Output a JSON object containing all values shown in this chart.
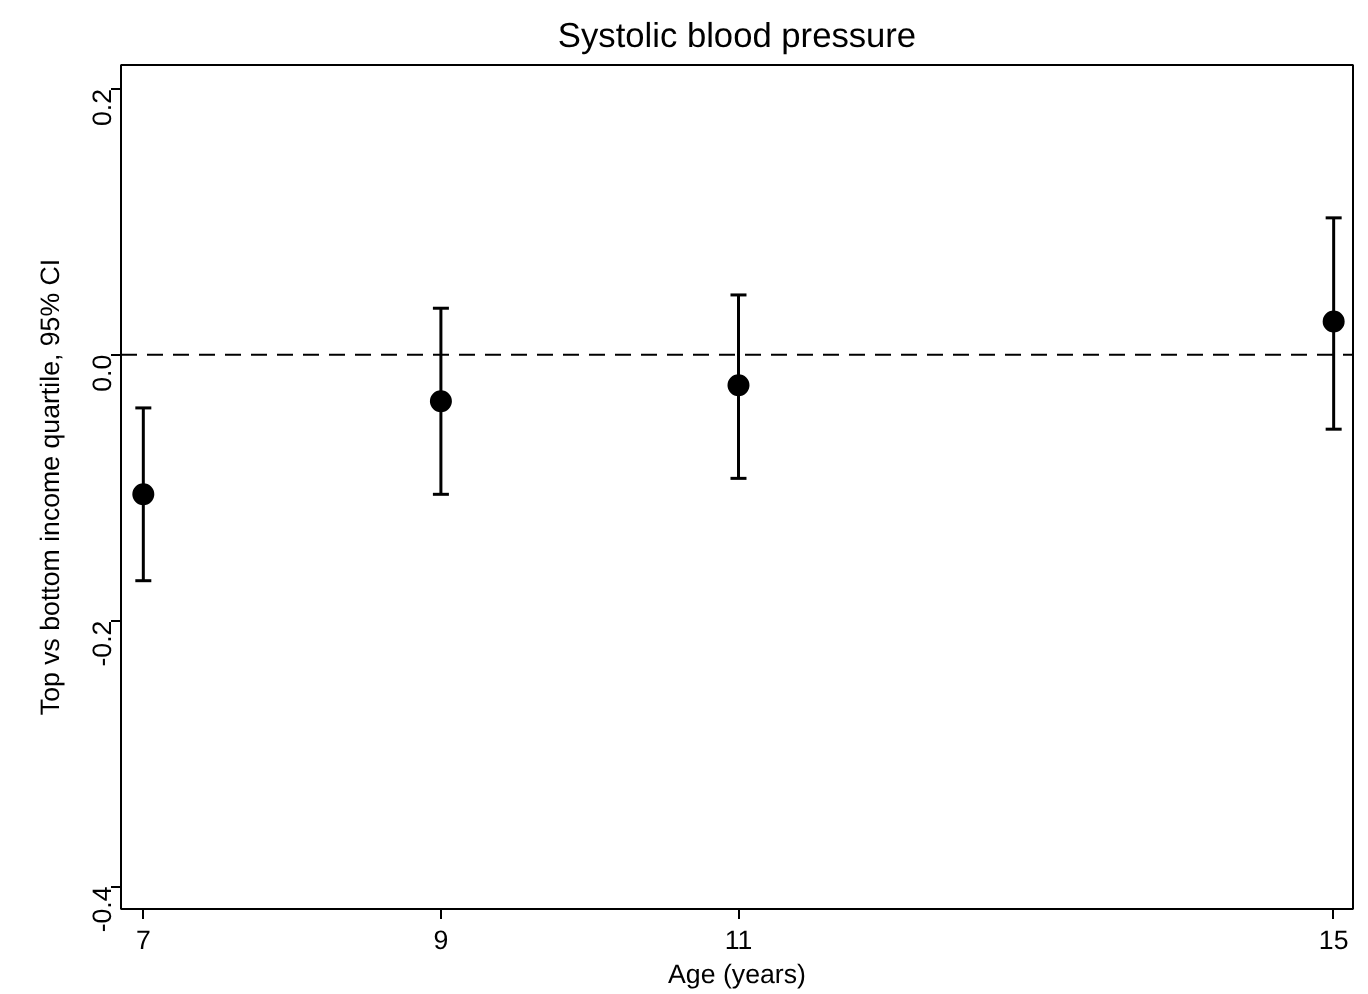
{
  "chart_data": {
    "type": "scatter",
    "title": "Systolic blood pressure",
    "xlabel": "Age (years)",
    "ylabel": "Top vs bottom income quartile, 95% CI",
    "x": [
      7,
      9,
      11,
      15
    ],
    "series": [
      {
        "color": "#000000",
        "values": [
          -0.105,
          -0.035,
          -0.023,
          0.025
        ],
        "errors": [
          [
            -0.17,
            -0.04
          ],
          [
            -0.105,
            0.035
          ],
          [
            -0.093,
            0.045
          ],
          [
            -0.056,
            0.103
          ]
        ]
      }
    ],
    "xlim": [
      6.85,
      15.13
    ],
    "ylim": [
      -0.417,
      0.218
    ],
    "xticks": [
      7,
      9,
      11,
      15
    ],
    "yticks": [
      {
        "value": -0.4,
        "label": "-0.4"
      },
      {
        "value": -0.2,
        "label": "-0.2"
      },
      {
        "value": 0,
        "label": "0.0"
      },
      {
        "value": 0.2,
        "label": "0.2"
      }
    ],
    "ref_lines": [
      {
        "axis": "y",
        "value": 0,
        "color": "#000000",
        "line_style": "dashed"
      }
    ],
    "grid": false,
    "marker": "circle"
  }
}
